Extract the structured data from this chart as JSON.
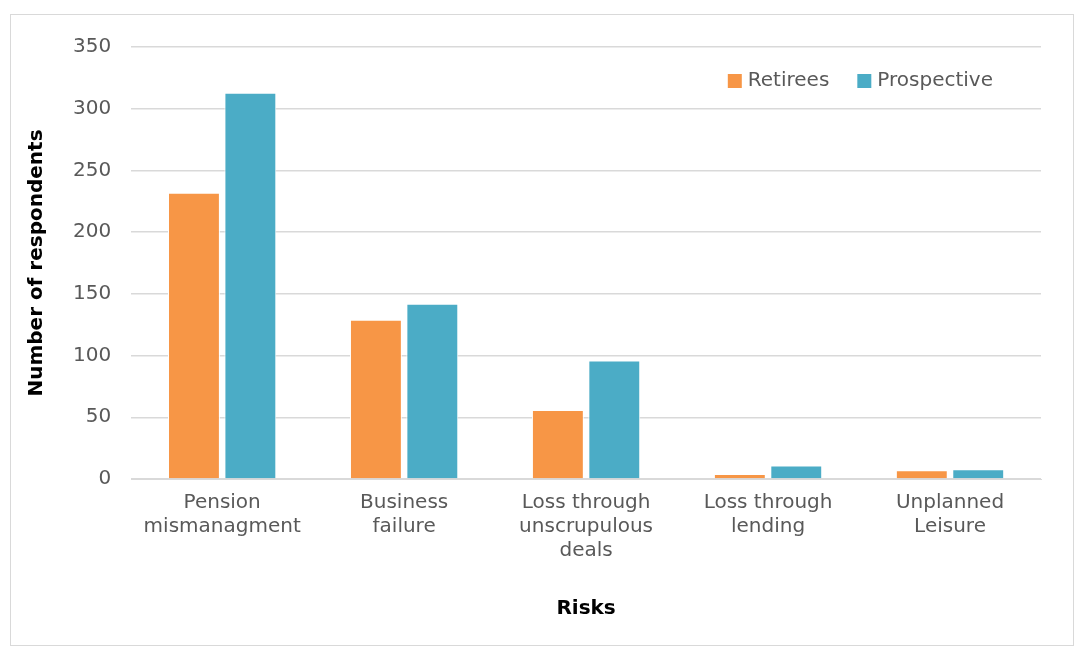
{
  "chart_data": {
    "type": "bar",
    "xlabel": "Risks",
    "ylabel": "Number of respondents",
    "categories": [
      "Pension mismanagment",
      "Business failure",
      "Loss through unscrupulous deals",
      "Loss through lending",
      "Unplanned Leisure"
    ],
    "series": [
      {
        "name": "Retirees",
        "color": "#f79646",
        "values": [
          232,
          129,
          56,
          4,
          7
        ]
      },
      {
        "name": "Prospective",
        "color": "#4bacc6",
        "values": [
          313,
          142,
          96,
          11,
          8
        ]
      }
    ],
    "ylim": [
      0,
      350
    ],
    "yticks": [
      0,
      50,
      100,
      150,
      200,
      250,
      300,
      350
    ],
    "grid": "y",
    "legend": "top right"
  }
}
